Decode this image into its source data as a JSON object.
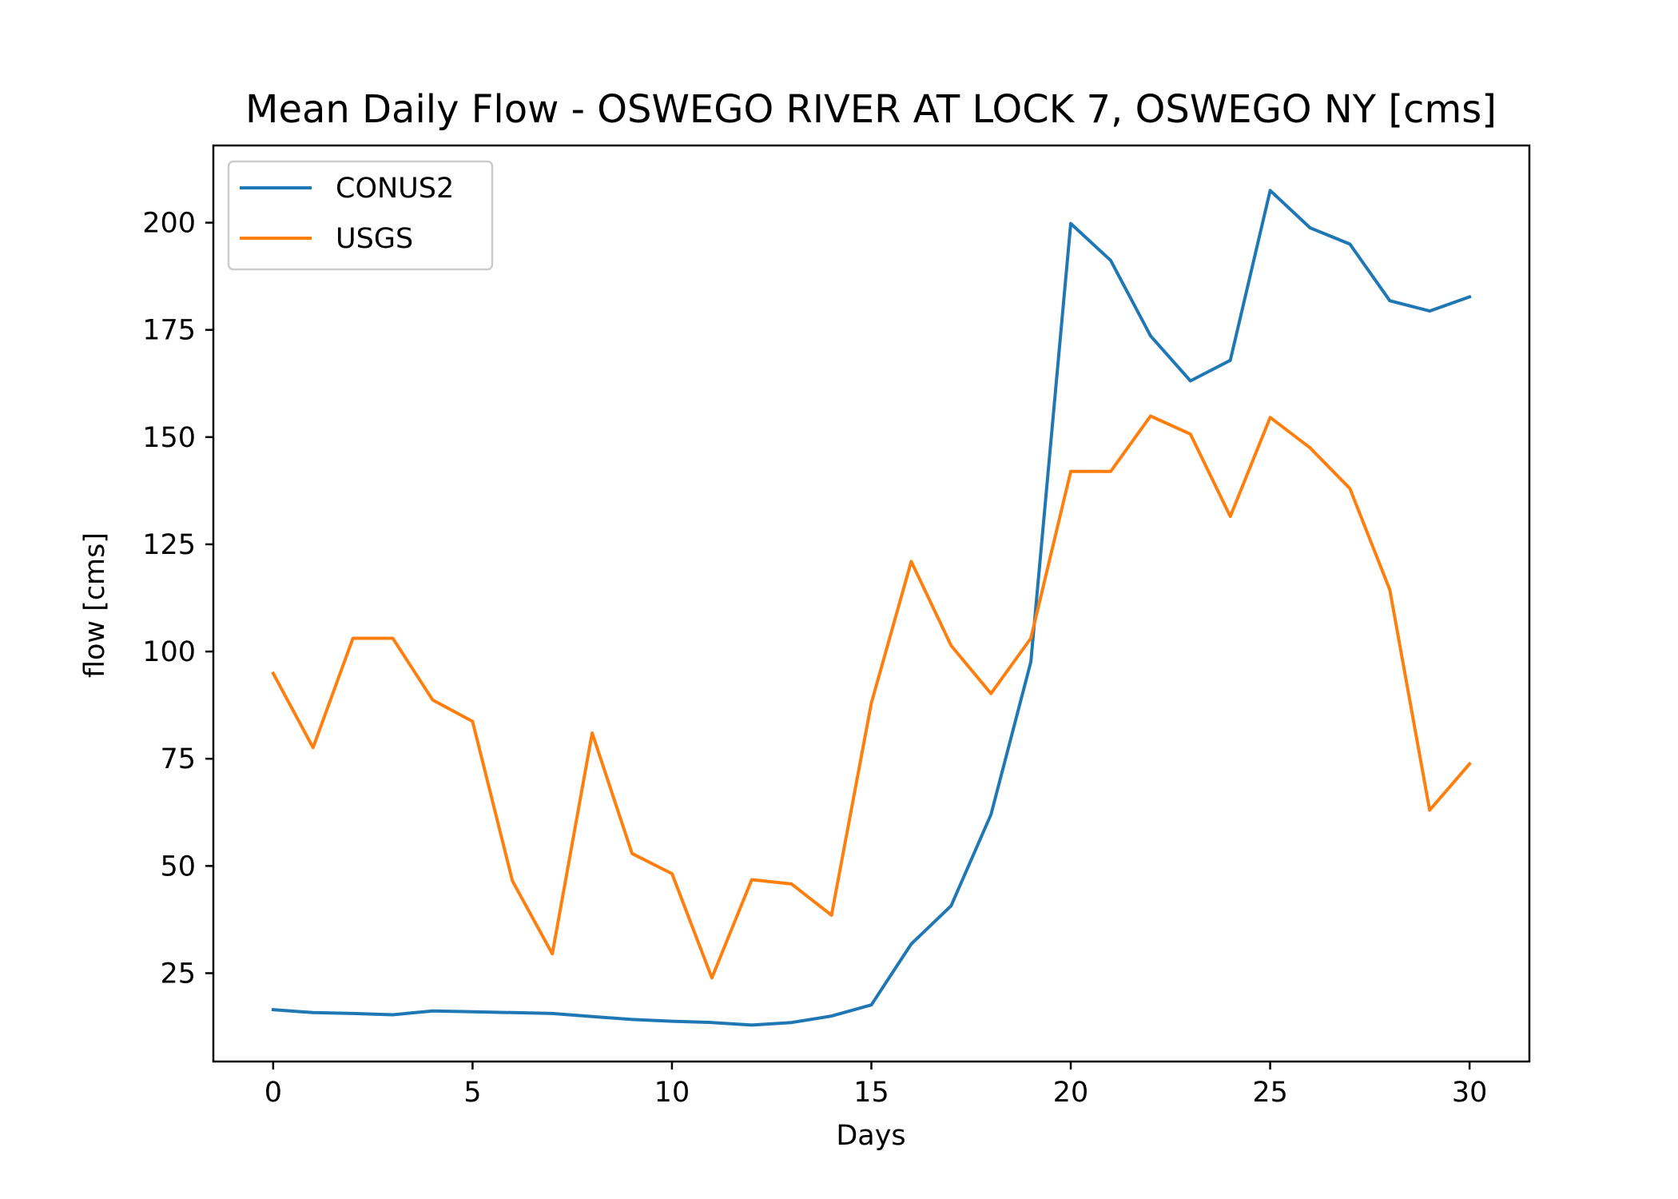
{
  "chart_data": {
    "type": "line",
    "title": "Mean Daily Flow - OSWEGO RIVER AT LOCK 7, OSWEGO NY [cms]",
    "xlabel": "Days",
    "ylabel": "flow [cms]",
    "xlim": [
      -1.5,
      31.5
    ],
    "ylim": [
      4.4,
      218
    ],
    "xticks": [
      0,
      5,
      10,
      15,
      20,
      25,
      30
    ],
    "xtick_labels": [
      "0",
      "5",
      "10",
      "15",
      "20",
      "25",
      "30"
    ],
    "yticks": [
      25,
      50,
      75,
      100,
      125,
      150,
      175,
      200
    ],
    "ytick_labels": [
      "25",
      "50",
      "75",
      "100",
      "125",
      "150",
      "175",
      "200"
    ],
    "grid": false,
    "legend_position": "top-left",
    "x": [
      0,
      1,
      2,
      3,
      4,
      5,
      6,
      7,
      8,
      9,
      10,
      11,
      12,
      13,
      14,
      15,
      16,
      17,
      18,
      19,
      20,
      21,
      22,
      23,
      24,
      25,
      26,
      27,
      28,
      29,
      30
    ],
    "series": [
      {
        "name": "CONUS2",
        "color": "#1f77b4",
        "values": [
          16.5,
          15.8,
          15.6,
          15.3,
          16.2,
          16.0,
          15.8,
          15.6,
          14.9,
          14.2,
          13.8,
          13.5,
          12.9,
          13.5,
          15.0,
          17.6,
          31.8,
          40.7,
          62.0,
          97.6,
          199.8,
          191.2,
          173.6,
          163.1,
          167.9,
          207.5,
          198.8,
          195.0,
          181.8,
          179.4,
          182.7
        ]
      },
      {
        "name": "USGS",
        "color": "#ff7f0e",
        "values": [
          94.9,
          77.6,
          103.1,
          103.1,
          88.7,
          83.7,
          46.5,
          29.5,
          81.0,
          52.9,
          48.2,
          23.9,
          46.8,
          45.8,
          38.5,
          88.0,
          121.0,
          101.4,
          90.2,
          103.1,
          142.0,
          142.0,
          154.9,
          150.7,
          131.5,
          154.6,
          147.5,
          138.0,
          114.4,
          63.0,
          73.8
        ]
      }
    ]
  }
}
